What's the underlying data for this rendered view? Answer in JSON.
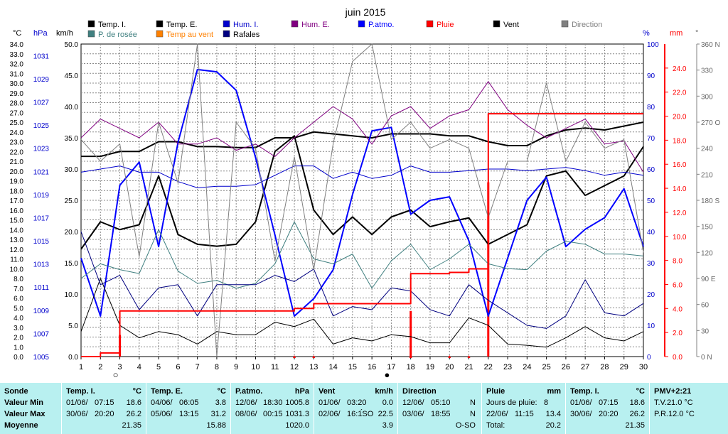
{
  "chart_data": {
    "type": "line",
    "title": "juin 2015",
    "x": [
      1,
      2,
      3,
      4,
      5,
      6,
      7,
      8,
      9,
      10,
      11,
      12,
      13,
      14,
      15,
      16,
      17,
      18,
      19,
      20,
      21,
      22,
      23,
      24,
      25,
      26,
      27,
      28,
      29,
      30
    ],
    "xlim": [
      1,
      30
    ],
    "axes": {
      "temp": {
        "unit": "°C",
        "ticks": [
          "34.0",
          "33.0",
          "32.0",
          "31.0",
          "30.0",
          "29.0",
          "28.0",
          "27.0",
          "25.0",
          "24.0",
          "23.0",
          "22.0",
          "21.0",
          "20.0",
          "19.0",
          "18.0",
          "17.0",
          "16.0",
          "15.0",
          "14.0",
          "13.0",
          "12.0",
          "11.0",
          "10.0",
          "8.0",
          "7.0",
          "6.0",
          "5.0",
          "4.0",
          "3.0",
          "2.0",
          "1.0",
          "0.0"
        ],
        "tick_values": [
          34,
          33,
          32,
          31,
          30,
          29,
          28,
          27,
          25,
          24,
          23,
          22,
          21,
          20,
          19,
          18,
          17,
          16,
          15,
          14,
          13,
          12,
          11,
          10,
          8,
          7,
          6,
          5,
          4,
          3,
          2,
          1,
          0
        ]
      },
      "pressure": {
        "unit": "hPa",
        "ticks": [
          "1031",
          "1029",
          "1027",
          "1025",
          "1023",
          "1021",
          "1019",
          "1017",
          "1015",
          "1013",
          "1011",
          "1009",
          "1007",
          "1005"
        ],
        "range": [
          1005,
          1032
        ]
      },
      "wind": {
        "unit": "km/h",
        "ticks": [
          "50.0",
          "45.0",
          "40.0",
          "35.0",
          "30.0",
          "25.0",
          "20.0",
          "15.0",
          "10.0",
          "5.0",
          "0.0"
        ],
        "range": [
          0,
          50
        ]
      },
      "humidity": {
        "unit": "%",
        "ticks": [
          "100",
          "90",
          "80",
          "70",
          "60",
          "50",
          "40",
          "30",
          "20",
          "10",
          "0"
        ],
        "range": [
          0,
          100
        ]
      },
      "rain": {
        "unit": "mm",
        "ticks": [
          "24.0",
          "22.0",
          "20.0",
          "18.0",
          "16.0",
          "14.0",
          "12.0",
          "10.0",
          "8.0",
          "6.0",
          "4.0",
          "2.0",
          "0.0"
        ],
        "range": [
          0,
          26
        ]
      },
      "direction": {
        "unit": "°",
        "ticks": [
          "360 N",
          "330",
          "300",
          "270 O",
          "240",
          "210",
          "180 S",
          "150",
          "120",
          "90 E",
          "60",
          "30",
          "0 N"
        ],
        "range": [
          0,
          360
        ]
      }
    },
    "legend": [
      {
        "name": "Temp. I.",
        "color": "#000000"
      },
      {
        "name": "Temp. E.",
        "color": "#000000"
      },
      {
        "name": "Hum. I.",
        "color": "#0000cc"
      },
      {
        "name": "Hum. E.",
        "color": "#800080"
      },
      {
        "name": "P.atmo.",
        "color": "#0000ff"
      },
      {
        "name": "Pluie",
        "color": "#ff0000"
      },
      {
        "name": "Vent",
        "color": "#000000"
      },
      {
        "name": "Direction",
        "color": "#808080"
      },
      {
        "name": "P. de rosée",
        "color": "#408080"
      },
      {
        "name": "Temp au vent",
        "color": "#ff8000"
      },
      {
        "name": "Rafales",
        "color": "#000080"
      }
    ],
    "series": [
      {
        "name": "Temp. I.",
        "axis": "temp",
        "color": "#000000",
        "width": 2,
        "values": [
          21.5,
          21.5,
          22.0,
          22.0,
          23.0,
          23.0,
          22.5,
          22.5,
          22.4,
          22.4,
          23.4,
          23.4,
          24.0,
          23.8,
          23.6,
          23.4,
          23.8,
          23.8,
          23.8,
          23.6,
          23.6,
          23.0,
          22.6,
          22.6,
          23.6,
          24.2,
          24.4,
          24.2,
          24.6,
          25.0
        ]
      },
      {
        "name": "Temp. E.",
        "axis": "temp",
        "color": "#000000",
        "width": 2,
        "values": [
          12.0,
          14.8,
          14.0,
          14.5,
          19.5,
          13.5,
          12.5,
          12.3,
          12.5,
          14.8,
          22.0,
          23.6,
          16.0,
          13.5,
          15.3,
          13.5,
          15.3,
          16.0,
          14.3,
          14.8,
          15.2,
          12.5,
          13.5,
          14.5,
          19.5,
          20.0,
          17.5,
          18.5,
          19.5,
          22.5
        ]
      },
      {
        "name": "P.atmo.",
        "axis": "pressure",
        "color": "#0000ff",
        "width": 2,
        "values": [
          1013.5,
          1008.5,
          1019.8,
          1021.8,
          1014.5,
          1023.5,
          1029.8,
          1029.6,
          1028.0,
          1022.2,
          1015.5,
          1008.5,
          1010.0,
          1012.5,
          1019.0,
          1024.5,
          1024.8,
          1017.3,
          1018.5,
          1018.8,
          1015.0,
          1008.5,
          1013.5,
          1018.5,
          1020.5,
          1014.5,
          1016.0,
          1017.0,
          1019.5,
          1014.5
        ]
      },
      {
        "name": "Hum. E.",
        "axis": "humidity",
        "color": "#800080",
        "width": 1,
        "values": [
          70,
          76,
          73,
          70,
          75,
          68,
          68,
          70,
          66,
          68,
          64,
          70,
          75,
          80,
          76,
          68,
          77,
          80,
          73,
          77,
          79,
          88,
          79,
          74,
          70,
          73,
          76,
          68,
          69,
          59
        ]
      },
      {
        "name": "Hum. I.",
        "axis": "humidity",
        "color": "#0000cc",
        "width": 1,
        "values": [
          59,
          60,
          61,
          59,
          59,
          56,
          54,
          54.5,
          54.5,
          55,
          58,
          61,
          61,
          57,
          59,
          57,
          58,
          61,
          59,
          59,
          59.5,
          60,
          60,
          59.5,
          60,
          60.5,
          59.5,
          58,
          59,
          58
        ]
      },
      {
        "name": "P. de rosée",
        "axis": "temp",
        "color": "#408080",
        "width": 1,
        "values": [
          8.0,
          10.5,
          9.8,
          9.0,
          14.0,
          9.5,
          7.5,
          7.8,
          7.0,
          7.5,
          10.5,
          14.8,
          11.0,
          10.5,
          11.5,
          7.0,
          10.8,
          12.5,
          9.8,
          11.0,
          12.5,
          10.5,
          10.0,
          9.8,
          11.8,
          12.8,
          12.5,
          11.5,
          11.5,
          11.3
        ]
      },
      {
        "name": "Vent",
        "axis": "wind",
        "color": "#000000",
        "width": 1,
        "values": [
          4.0,
          12.5,
          5.0,
          3.0,
          4.0,
          3.5,
          2.0,
          4.0,
          3.5,
          3.5,
          5.5,
          4.8,
          6.0,
          2.0,
          3.0,
          2.5,
          3.5,
          3.2,
          2.2,
          2.2,
          6.2,
          5.0,
          2.0,
          1.8,
          1.5,
          3.0,
          4.8,
          3.0,
          2.5,
          4.0
        ]
      },
      {
        "name": "Rafales",
        "axis": "wind",
        "color": "#000080",
        "width": 1,
        "values": [
          20.0,
          11.5,
          13.0,
          7.5,
          11.0,
          11.5,
          6.5,
          11.5,
          11.5,
          11.5,
          13.0,
          12.0,
          14.0,
          6.5,
          8.0,
          7.5,
          11.0,
          10.5,
          7.5,
          6.5,
          11.5,
          9.0,
          7.0,
          5.0,
          4.5,
          6.5,
          12.3,
          7.0,
          6.5,
          8.5
        ]
      },
      {
        "name": "Direction",
        "axis": "direction",
        "color": "#808080",
        "width": 1,
        "values": [
          250,
          225,
          245,
          115,
          270,
          200,
          360,
          0,
          270,
          240,
          110,
          230,
          100,
          245,
          340,
          360,
          250,
          270,
          240,
          250,
          240,
          160,
          225,
          225,
          315,
          225,
          270,
          240,
          250,
          120
        ]
      },
      {
        "name": "Pluie",
        "axis": "rain",
        "color": "#ff0000",
        "width": 2,
        "step": true,
        "values": [
          0.0,
          0.3,
          3.8,
          3.8,
          3.8,
          3.8,
          3.8,
          3.8,
          3.8,
          3.8,
          3.8,
          4.0,
          4.4,
          4.4,
          4.4,
          4.4,
          4.4,
          6.9,
          6.9,
          7.0,
          7.3,
          20.2,
          20.2,
          20.2,
          20.2,
          20.2,
          20.2,
          20.2,
          20.2,
          20.2
        ]
      }
    ],
    "rain_bars": {
      "axis": "rain",
      "color": "#ff0000",
      "days": [
        3,
        18,
        22
      ],
      "values": [
        1.8,
        3.8,
        14.5
      ]
    },
    "rain_markers": {
      "days": [
        12,
        13,
        18,
        20,
        21
      ]
    },
    "moon_markers": [
      {
        "day": 3,
        "symbol": "○"
      },
      {
        "day": 17,
        "symbol": "●"
      }
    ],
    "grid": true
  },
  "stats": {
    "sonde": {
      "title": "Sonde",
      "rows": [
        "Valeur Min",
        "Valeur Max",
        "Moyenne"
      ]
    },
    "temp_i": {
      "title": "Temp. I.",
      "unit": "°C",
      "rows": [
        {
          "date": "01/06/",
          "time": "07:15",
          "value": "18.6"
        },
        {
          "date": "30/06/",
          "time": "20:20",
          "value": "26.2"
        }
      ],
      "mean": "21.35"
    },
    "temp_e": {
      "title": "Temp. E.",
      "unit": "°C",
      "rows": [
        {
          "date": "04/06/",
          "time": "06:05",
          "value": "3.8"
        },
        {
          "date": "05/06/",
          "time": "13:15",
          "value": "31.2"
        }
      ],
      "mean": "15.88"
    },
    "patmo": {
      "title": "P.atmo.",
      "unit": "hPa",
      "rows": [
        {
          "date": "12/06/",
          "time": "18:30",
          "value": "1005.8"
        },
        {
          "date": "08/06/",
          "time": "00:15",
          "value": "1031.3"
        }
      ],
      "mean": "1020.0"
    },
    "vent": {
      "title": "Vent",
      "unit": "km/h",
      "rows": [
        {
          "date": "01/06/",
          "time": "03:20",
          "value": "0.0"
        },
        {
          "date": "02/06/",
          "time": "16:1́SO",
          "value": "22.5"
        }
      ],
      "mean": "3.9"
    },
    "direction": {
      "title": "Direction",
      "rows": [
        {
          "date": "12/06/",
          "time": "05:10",
          "value": "N"
        },
        {
          "date": "03/06/",
          "time": "18:55",
          "value": "N"
        }
      ],
      "mean": "O-SO"
    },
    "pluie": {
      "title": "Pluie",
      "unit": "mm",
      "rows": [
        {
          "date": "Jours de pluie:",
          "time": "",
          "value": "8"
        },
        {
          "date": "22/06/",
          "time": "11:15",
          "value": "13.4"
        }
      ],
      "total_label": "Total:",
      "mean": "20.2"
    },
    "temp_i2": {
      "title": "Temp. I.",
      "unit": "°C",
      "rows": [
        {
          "date": "01/06/",
          "time": "07:15",
          "value": "18.6"
        },
        {
          "date": "30/06/",
          "time": "20:20",
          "value": "26.2"
        }
      ],
      "mean": "21.35"
    },
    "pmv": {
      "title": "PMV+2:21",
      "lines": [
        "T.V.21.0 °C",
        "P.R.12.0 °C"
      ]
    }
  }
}
